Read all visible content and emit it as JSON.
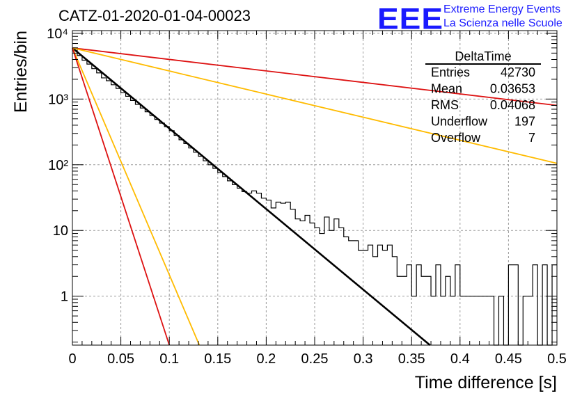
{
  "header": {
    "title": "CATZ-01-2020-01-04-00023",
    "logo_text": "EEE",
    "logo_line1": "Extreme Energy Events",
    "logo_line2": "La Scienza nelle Scuole",
    "logo_color": "#1a1aff"
  },
  "stats": {
    "name": "DeltaTime",
    "rows": [
      {
        "label": "Entries",
        "value": "42730"
      },
      {
        "label": "Mean",
        "value": "0.03653"
      },
      {
        "label": "RMS",
        "value": "0.04068"
      },
      {
        "label": "Underflow",
        "value": "197"
      },
      {
        "label": "Overflow",
        "value": "7"
      }
    ]
  },
  "chart_data": {
    "type": "line",
    "xlabel": "Time difference [s]",
    "ylabel": "Entries/bin",
    "xlim": [
      0,
      0.5
    ],
    "ylim": [
      0.18,
      11000
    ],
    "yscale": "log",
    "grid": true,
    "x_ticks": [
      0,
      0.05,
      0.1,
      0.15,
      0.2,
      0.25,
      0.3,
      0.35,
      0.4,
      0.45,
      0.5
    ],
    "x_tick_labels": [
      "0",
      "0.05",
      "0.1",
      "0.15",
      "0.2",
      "0.25",
      "0.3",
      "0.35",
      "0.4",
      "0.45",
      "0.5"
    ],
    "y_ticks": [
      1,
      10,
      100,
      1000,
      10000
    ],
    "y_tick_labels": [
      "1",
      "10",
      "10²",
      "10³",
      "10⁴"
    ],
    "histogram": {
      "bin_width": 0.005,
      "color": "#000000",
      "values": [
        6000,
        4600,
        3900,
        3400,
        2900,
        2500,
        2100,
        1900,
        1650,
        1450,
        1250,
        1100,
        950,
        830,
        730,
        640,
        560,
        490,
        430,
        380,
        330,
        280,
        240,
        210,
        180,
        155,
        135,
        115,
        100,
        88,
        76,
        66,
        57,
        50,
        44,
        39,
        37,
        40,
        37,
        31,
        29,
        22,
        27,
        26,
        27,
        21,
        15,
        14,
        17,
        13,
        11,
        9,
        16,
        10,
        15,
        11,
        8,
        7,
        7,
        5,
        5,
        6,
        4,
        6,
        5,
        6,
        4,
        2,
        2,
        3,
        1,
        3,
        2,
        2,
        1,
        3,
        1,
        2,
        1,
        3,
        1,
        1,
        1,
        1,
        1,
        1,
        1,
        0.1,
        1,
        0.1,
        3,
        3,
        0.1,
        1,
        1,
        3,
        0.1,
        3,
        0.1,
        3
      ]
    },
    "series": [
      {
        "color": "#000000",
        "points": [
          [
            0,
            6000
          ],
          [
            0.369,
            0.18
          ]
        ]
      },
      {
        "color": "#dd1111",
        "points": [
          [
            0,
            6000
          ],
          [
            0.5,
            800
          ]
        ]
      },
      {
        "color": "#ffbb00",
        "points": [
          [
            0,
            6000
          ],
          [
            0.5,
            105
          ]
        ]
      },
      {
        "color": "#ffbb00",
        "points": [
          [
            0,
            6000
          ],
          [
            0.131,
            0.18
          ]
        ]
      },
      {
        "color": "#dd1111",
        "points": [
          [
            0,
            6000
          ],
          [
            0.1,
            0.18
          ]
        ]
      }
    ]
  }
}
